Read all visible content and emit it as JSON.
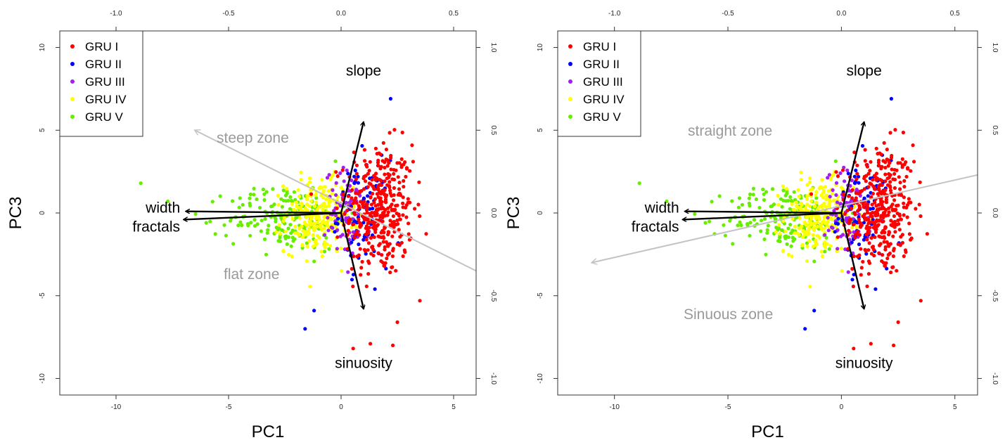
{
  "chart_data": [
    {
      "type": "scatter",
      "subtype": "pca-biplot",
      "xlabel": "PC1",
      "ylabel": "PC3",
      "xlim": [
        -12.5,
        6
      ],
      "ylim": [
        -11,
        11
      ],
      "x_ticks": [
        "-10",
        "-5",
        "0",
        "5"
      ],
      "y_ticks": [
        "-10",
        "-5",
        "0",
        "5",
        "10"
      ],
      "top_ticks": [
        "-1.0",
        "-0.5",
        "0.0",
        "0.5"
      ],
      "right_ticks": [
        "-1.0",
        "-0.5",
        "0.0",
        "0.5",
        "1.0"
      ],
      "legend_position": "top-left",
      "series": [
        {
          "name": "GRU I",
          "color": "#ff0000"
        },
        {
          "name": "GRU II",
          "color": "#0000ff"
        },
        {
          "name": "GRU III",
          "color": "#a020f0"
        },
        {
          "name": "GRU IV",
          "color": "#ffff00"
        },
        {
          "name": "GRU V",
          "color": "#66ee00"
        }
      ],
      "loadings": [
        {
          "label": "slope",
          "x": 0.1,
          "y": 0.55
        },
        {
          "label": "sinuosity",
          "x": 0.1,
          "y": -0.58
        },
        {
          "label": "width",
          "x": -0.69,
          "y": 0.01
        },
        {
          "label": "fractals",
          "x": -0.7,
          "y": -0.04
        }
      ],
      "gradient_arrow": {
        "from": [
          6,
          -3.5
        ],
        "to": [
          -6.5,
          5
        ]
      },
      "zone_labels": [
        "steep zone",
        "flat zone"
      ]
    },
    {
      "type": "scatter",
      "subtype": "pca-biplot",
      "xlabel": "PC1",
      "ylabel": "PC3",
      "xlim": [
        -12.5,
        6
      ],
      "ylim": [
        -11,
        11
      ],
      "x_ticks": [
        "-10",
        "-5",
        "0",
        "5"
      ],
      "y_ticks": [
        "-10",
        "-5",
        "0",
        "5",
        "10"
      ],
      "top_ticks": [
        "-1.0",
        "-0.5",
        "0.0",
        "0.5"
      ],
      "right_ticks": [
        "-1.0",
        "-0.5",
        "0.0",
        "0.5",
        "1.0"
      ],
      "legend_position": "top-left",
      "series": [
        {
          "name": "GRU I",
          "color": "#ff0000"
        },
        {
          "name": "GRU II",
          "color": "#0000ff"
        },
        {
          "name": "GRU III",
          "color": "#a020f0"
        },
        {
          "name": "GRU IV",
          "color": "#ffff00"
        },
        {
          "name": "GRU V",
          "color": "#66ee00"
        }
      ],
      "loadings": [
        {
          "label": "slope",
          "x": 0.1,
          "y": 0.55
        },
        {
          "label": "sinuosity",
          "x": 0.1,
          "y": -0.58
        },
        {
          "label": "width",
          "x": -0.69,
          "y": 0.01
        },
        {
          "label": "fractals",
          "x": -0.7,
          "y": -0.04
        }
      ],
      "gradient_arrow": {
        "from": [
          6,
          2.3
        ],
        "to": [
          -11,
          -3
        ]
      },
      "zone_labels": [
        "straight zone",
        "Sinuous zone"
      ]
    }
  ]
}
